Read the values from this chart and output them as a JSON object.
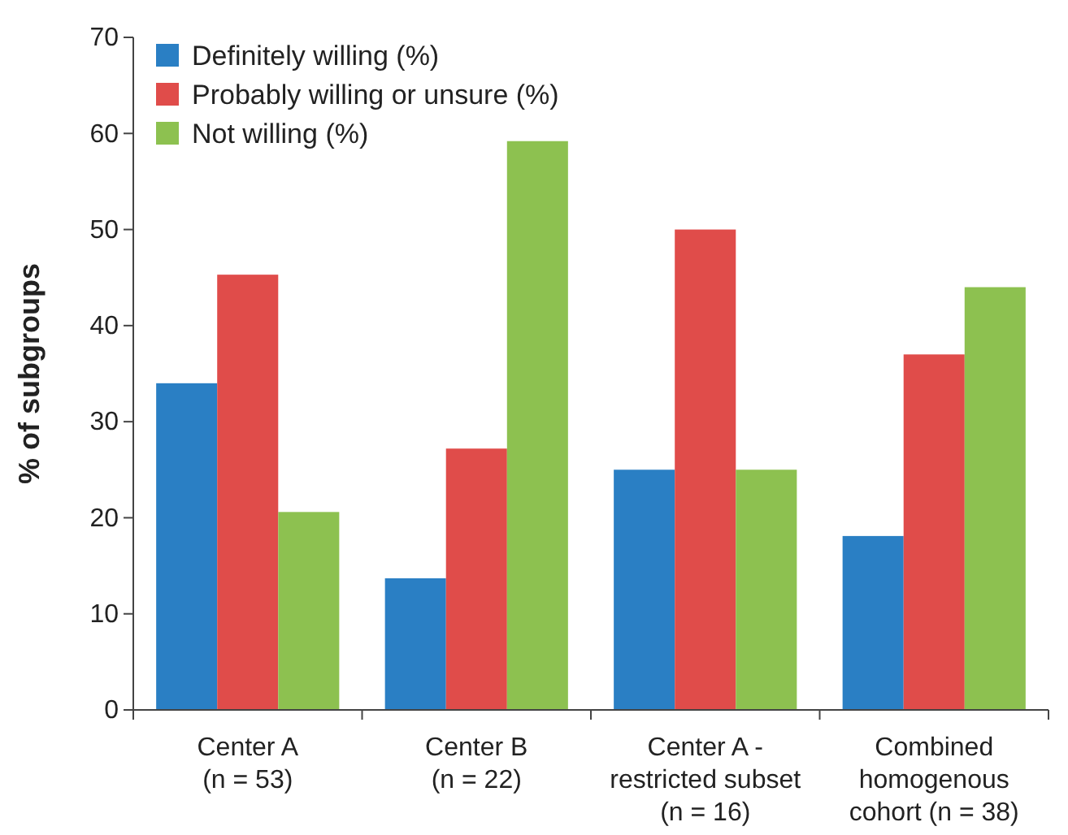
{
  "chart_data": {
    "type": "bar",
    "ylabel": "% of subgroups",
    "categories": [
      "Center A\n(n = 53)",
      "Center B\n(n = 22)",
      "Center A -\nrestricted subset\n(n = 16)",
      "Combined\nhomogenous\ncohort (n = 38)"
    ],
    "series": [
      {
        "name": "Definitely willing (%)",
        "color": "#2a7fc4",
        "values": [
          34.0,
          13.7,
          25.0,
          18.1
        ]
      },
      {
        "name": "Probably willing or unsure (%)",
        "color": "#e04c4a",
        "values": [
          45.3,
          27.2,
          50.0,
          37.0
        ]
      },
      {
        "name": "Not willing (%)",
        "color": "#8dc150",
        "values": [
          20.6,
          59.2,
          25.0,
          44.0
        ]
      }
    ],
    "ylim": [
      0,
      70
    ],
    "yticks": [
      0,
      10,
      20,
      30,
      40,
      50,
      60,
      70
    ],
    "grid": false,
    "legend": "top left"
  }
}
